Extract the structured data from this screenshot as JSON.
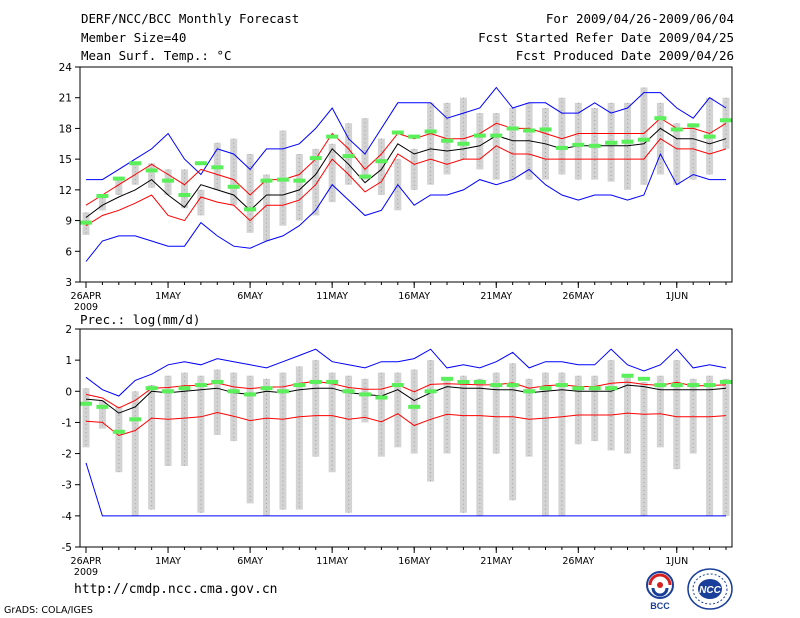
{
  "header": {
    "title": "DERF/NCC/BCC Monthly Forecast",
    "member_size": "Member Size=40",
    "variable1": "Mean Surf. Temp.: °C",
    "period": "For 2009/04/26-2009/06/04",
    "started": "Fcst Started Refer Date 2009/04/25",
    "produced": "Fcst Produced Date 2009/04/26"
  },
  "footer": {
    "url": "http://cmdp.ncc.cma.gov.cn",
    "credit": "GrADS: COLA/IGES",
    "logo_left_text": "BCC",
    "logo_right_text": "NCC"
  },
  "chart_data": [
    {
      "type": "box-ensemble",
      "title": "Mean Surf. Temp.: °C",
      "ylim": [
        3,
        24
      ],
      "yticks": [
        3,
        6,
        9,
        12,
        15,
        18,
        21,
        24
      ],
      "xlabels": [
        "26APR",
        "1MAY",
        "6MAY",
        "11MAY",
        "16MAY",
        "21MAY",
        "26MAY",
        "1JUN"
      ],
      "xlabel_day_index": [
        0,
        5,
        10,
        15,
        20,
        25,
        30,
        36
      ],
      "year_label": "2009",
      "days": 40,
      "box_lo": [
        7.6,
        10.0,
        11.5,
        12.5,
        12.2,
        11.5,
        10.2,
        9.5,
        12.0,
        10.5,
        7.8,
        7.0,
        8.5,
        9.0,
        9.5,
        10.8,
        12.5,
        13.0,
        11.5,
        10.0,
        12.0,
        12.5,
        13.5,
        15.0,
        14.0,
        13.0,
        13.0,
        13.0,
        13.0,
        13.5,
        13.0,
        13.0,
        12.8,
        12.0,
        12.5,
        13.5,
        12.5,
        13.0,
        13.5,
        16.0
      ],
      "box_hi": [
        9.8,
        11.6,
        13.2,
        14.6,
        14.6,
        14.0,
        14.0,
        12.0,
        16.6,
        17.0,
        15.5,
        13.5,
        17.8,
        15.5,
        16.0,
        16.5,
        18.5,
        19.0,
        17.0,
        15.0,
        16.0,
        20.5,
        20.5,
        21.0,
        19.5,
        19.5,
        20.0,
        20.5,
        20.0,
        21.0,
        20.5,
        20.0,
        20.5,
        20.5,
        22.0,
        20.5,
        18.5,
        18.5,
        21.0,
        21.0
      ],
      "obs": [
        8.8,
        11.4,
        13.1,
        14.6,
        13.9,
        12.9,
        11.5,
        14.6,
        14.2,
        12.3,
        10.1,
        12.9,
        13.0,
        12.9,
        15.1,
        17.2,
        15.3,
        13.3,
        14.8,
        17.6,
        17.2,
        17.7,
        16.8,
        16.5,
        17.3,
        17.3,
        18.0,
        17.8,
        17.9,
        16.1,
        16.4,
        16.3,
        16.6,
        16.7,
        16.9,
        19.0,
        17.9,
        18.3,
        17.2,
        18.8
      ],
      "series": [
        {
          "name": "max",
          "color": "#0000ff",
          "values": [
            13.0,
            13.0,
            14.0,
            15.0,
            16.0,
            17.5,
            15.0,
            13.5,
            16.0,
            15.5,
            14.0,
            16.0,
            16.0,
            16.5,
            18.0,
            20.0,
            17.0,
            15.5,
            18.0,
            20.5,
            20.5,
            20.5,
            19.0,
            19.5,
            20.0,
            22.0,
            20.0,
            20.5,
            20.5,
            19.5,
            19.5,
            20.5,
            19.5,
            20.0,
            21.5,
            21.5,
            20.0,
            19.0,
            21.0,
            20.0
          ]
        },
        {
          "name": "upper",
          "color": "#ff0000",
          "values": [
            10.5,
            11.5,
            12.5,
            13.5,
            14.5,
            13.5,
            12.5,
            14.0,
            13.5,
            13.0,
            11.5,
            13.0,
            13.0,
            13.5,
            15.0,
            17.5,
            16.0,
            14.0,
            15.5,
            17.5,
            17.0,
            17.5,
            17.0,
            17.0,
            17.5,
            18.5,
            18.0,
            18.0,
            17.5,
            17.0,
            17.5,
            17.5,
            17.5,
            17.5,
            17.5,
            19.0,
            18.0,
            18.0,
            17.5,
            18.5
          ]
        },
        {
          "name": "mean",
          "color": "#000000",
          "values": [
            9.3,
            10.5,
            11.3,
            12.0,
            13.0,
            11.5,
            10.3,
            12.5,
            12.0,
            11.5,
            10.0,
            11.5,
            11.5,
            12.0,
            13.5,
            16.0,
            14.5,
            12.7,
            14.0,
            16.5,
            15.5,
            16.0,
            15.8,
            16.0,
            16.3,
            17.3,
            16.8,
            16.8,
            16.5,
            16.0,
            16.3,
            16.3,
            16.3,
            16.3,
            16.5,
            18.0,
            17.0,
            17.0,
            16.5,
            17.0
          ]
        },
        {
          "name": "lower",
          "color": "#ff0000",
          "values": [
            8.5,
            9.5,
            10.0,
            10.7,
            11.5,
            9.5,
            9.0,
            11.3,
            10.8,
            10.5,
            9.0,
            10.5,
            10.5,
            11.0,
            12.5,
            15.0,
            13.5,
            11.8,
            12.8,
            15.5,
            14.5,
            15.0,
            14.5,
            15.0,
            15.0,
            16.3,
            15.5,
            15.5,
            15.0,
            15.0,
            15.0,
            15.0,
            15.0,
            15.0,
            15.0,
            17.0,
            16.0,
            16.0,
            15.5,
            16.0
          ]
        },
        {
          "name": "min",
          "color": "#0000ff",
          "values": [
            5.0,
            7.0,
            7.5,
            7.5,
            7.0,
            6.5,
            6.5,
            8.8,
            7.5,
            6.5,
            6.3,
            7.0,
            7.5,
            8.5,
            10.0,
            12.5,
            11.0,
            9.5,
            10.0,
            12.5,
            10.5,
            11.5,
            11.5,
            12.0,
            13.0,
            12.5,
            13.0,
            14.0,
            12.5,
            11.5,
            11.0,
            11.5,
            11.5,
            11.0,
            11.5,
            15.5,
            12.5,
            13.5,
            13.0,
            13.0
          ]
        }
      ]
    },
    {
      "type": "box-ensemble",
      "title": "Prec.: log(mm/d)",
      "ylim": [
        -5,
        2
      ],
      "yticks": [
        -5,
        -4,
        -3,
        -2,
        -1,
        0,
        1,
        2
      ],
      "xlabels": [
        "26APR",
        "1MAY",
        "6MAY",
        "11MAY",
        "16MAY",
        "21MAY",
        "26MAY",
        "1JUN"
      ],
      "xlabel_day_index": [
        0,
        5,
        10,
        15,
        20,
        25,
        30,
        36
      ],
      "year_label": "2009",
      "days": 40,
      "box_lo": [
        -1.8,
        -1.2,
        -2.6,
        -4.0,
        -3.8,
        -2.4,
        -2.4,
        -3.9,
        -1.4,
        -1.6,
        -3.6,
        -4.0,
        -3.8,
        -3.8,
        -2.1,
        -2.6,
        -3.9,
        -1.0,
        -2.1,
        -1.8,
        -2.0,
        -2.9,
        -2.0,
        -3.9,
        -4.0,
        -2.0,
        -3.5,
        -2.1,
        -4.0,
        -4.0,
        -1.7,
        -1.6,
        -1.9,
        -2.0,
        -4.0,
        -1.8,
        -2.5,
        -2.0,
        -4.0,
        -4.0
      ],
      "box_hi": [
        0.1,
        -0.3,
        -0.5,
        0.0,
        0.2,
        0.5,
        0.6,
        0.5,
        0.7,
        0.6,
        0.5,
        0.4,
        0.6,
        0.8,
        1.0,
        0.6,
        0.5,
        0.4,
        0.6,
        0.6,
        0.7,
        1.0,
        0.4,
        0.5,
        0.4,
        0.6,
        0.9,
        0.4,
        0.6,
        0.6,
        0.5,
        0.5,
        1.0,
        0.5,
        0.3,
        0.5,
        1.0,
        0.4,
        0.5,
        0.4
      ],
      "obs": [
        -0.4,
        -0.5,
        -1.3,
        -0.9,
        0.1,
        0.0,
        0.1,
        0.2,
        0.3,
        0.0,
        -0.1,
        0.1,
        0.0,
        0.2,
        0.3,
        0.3,
        0.0,
        -0.1,
        -0.2,
        0.2,
        -0.5,
        0.0,
        0.4,
        0.3,
        0.3,
        0.2,
        0.2,
        0.0,
        0.1,
        0.2,
        0.1,
        0.1,
        0.1,
        0.5,
        0.4,
        0.2,
        0.2,
        0.2,
        0.2,
        0.3
      ]
    }
  ]
}
